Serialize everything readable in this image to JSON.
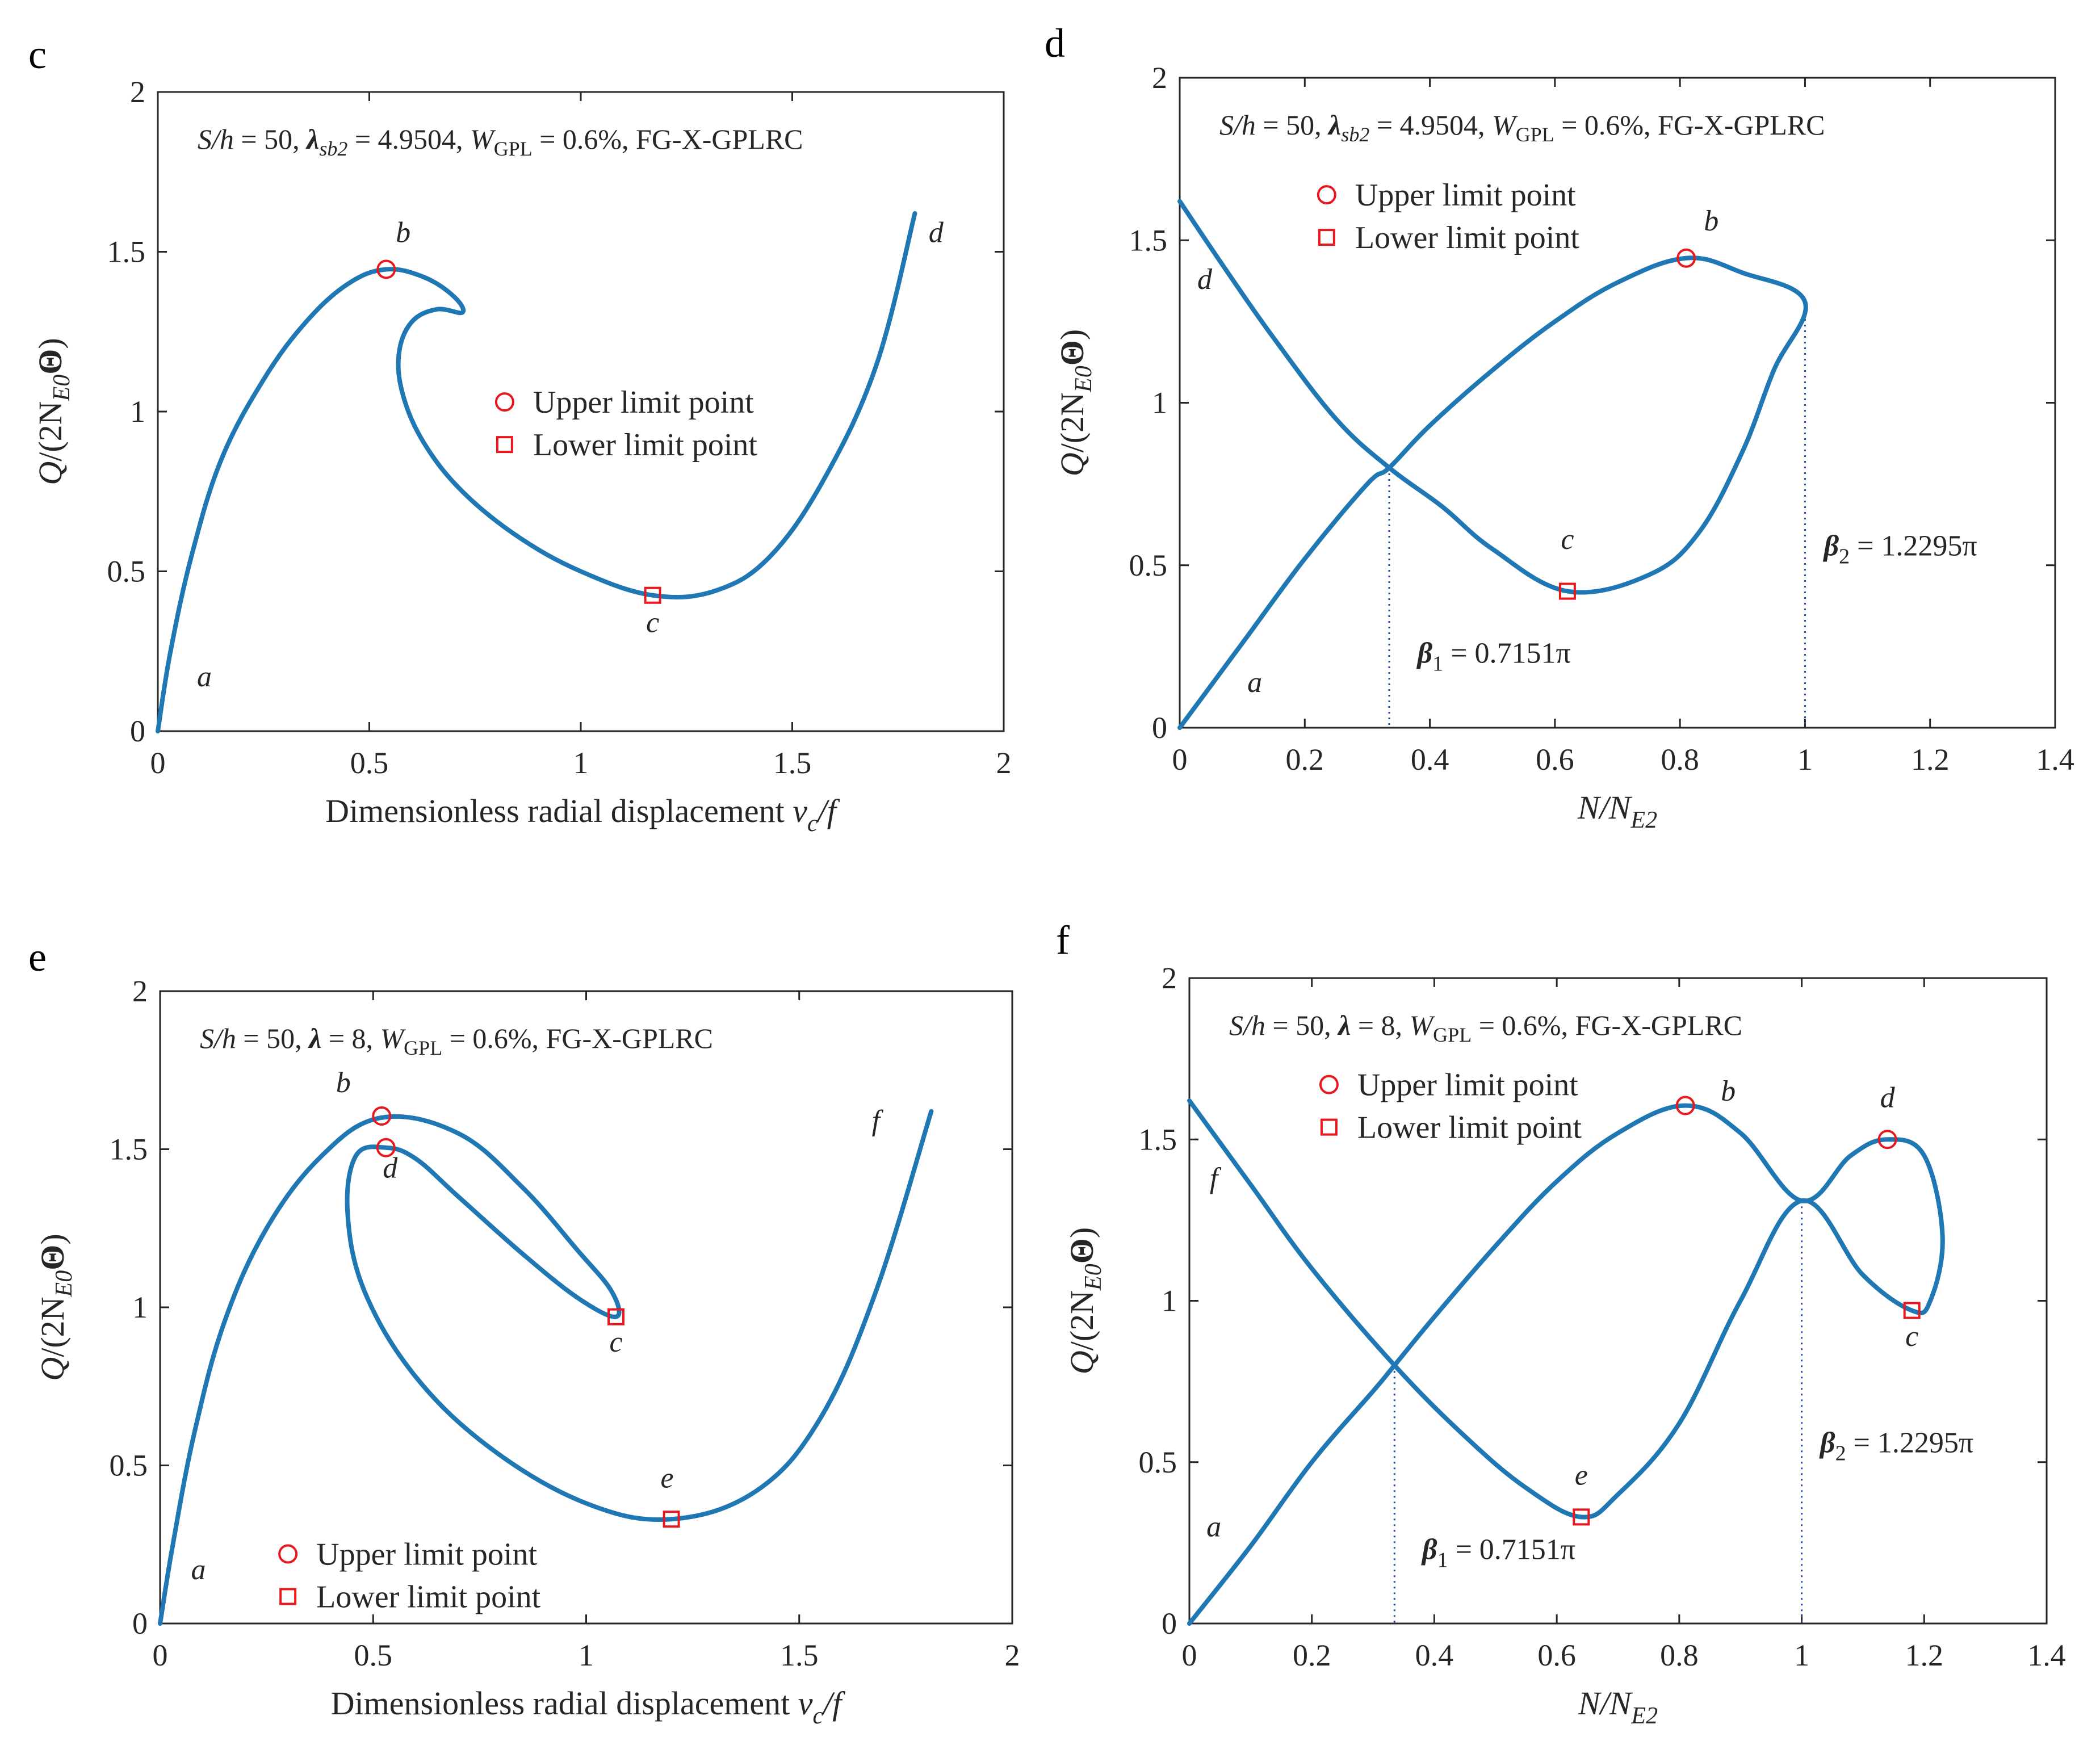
{
  "colors": {
    "curve": "#1f77b4",
    "marker": "#e8191e",
    "axes": "#262626",
    "dotted": "#1f4fa8"
  },
  "panels": [
    {
      "id": "c",
      "letter": "c",
      "annotation": {
        "pre": "S/h",
        "eq1": " = 50, ",
        "lam": "λ",
        "lamsub": "sb2",
        "eq2": " = 4.9504, ",
        "w": "W",
        "wsub": "GPL",
        "eq3": " = 0.6%, FG-X-GPLRC"
      },
      "legend": {
        "upper": "Upper limit point",
        "lower": "Lower limit point"
      },
      "ylabel": {
        "q": "Q",
        "rest": "/(2N",
        "sub": "E0",
        "theta": "Θ",
        "close": ")"
      },
      "xlabel": {
        "main": "Dimensionless radial displacement ",
        "v": "v",
        "sub": "c",
        "tail": "/f"
      },
      "xticks": [
        "0",
        "0.5",
        "1",
        "1.5",
        "2"
      ],
      "yticks": [
        "0",
        "0.5",
        "1",
        "1.5",
        "2"
      ],
      "point_labels": [
        "a",
        "b",
        "c",
        "d"
      ]
    },
    {
      "id": "d",
      "letter": "d",
      "annotation": {
        "pre": "S/h",
        "eq1": " = 50, ",
        "lam": "λ",
        "lamsub": "sb2",
        "eq2": " = 4.9504, ",
        "w": "W",
        "wsub": "GPL",
        "eq3": " = 0.6%, FG-X-GPLRC"
      },
      "legend": {
        "upper": "Upper limit point",
        "lower": "Lower limit point"
      },
      "ylabel": {
        "q": "Q",
        "rest": "/(2N",
        "sub": "E0",
        "theta": "Θ",
        "close": ")"
      },
      "xlabel": {
        "n": "N/N",
        "sub": "E2"
      },
      "xticks": [
        "0",
        "0.2",
        "0.4",
        "0.6",
        "0.8",
        "1",
        "1.2",
        "1.4"
      ],
      "yticks": [
        "0",
        "0.5",
        "1",
        "1.5",
        "2"
      ],
      "point_labels": [
        "a",
        "b",
        "c",
        "d"
      ],
      "beta1": {
        "b": "β",
        "sub": "1",
        "val": " = 0.7151π"
      },
      "beta2": {
        "b": "β",
        "sub": "2",
        "val": " = 1.2295π"
      }
    },
    {
      "id": "e",
      "letter": "e",
      "annotation": {
        "pre": "S/h",
        "eq1": " = 50, ",
        "lam": "λ",
        "eq2": " = 8, ",
        "w": "W",
        "wsub": "GPL",
        "eq3": " = 0.6%, FG-X-GPLRC"
      },
      "legend": {
        "upper": "Upper limit point",
        "lower": "Lower limit point"
      },
      "ylabel": {
        "q": "Q",
        "rest": "/(2N",
        "sub": "E0",
        "theta": "Θ",
        "close": ")"
      },
      "xlabel": {
        "main": "Dimensionless radial displacement ",
        "v": "v",
        "sub": "c",
        "tail": "/f"
      },
      "xticks": [
        "0",
        "0.5",
        "1",
        "1.5",
        "2"
      ],
      "yticks": [
        "0",
        "0.5",
        "1",
        "1.5",
        "2"
      ],
      "point_labels": [
        "a",
        "b",
        "c",
        "d",
        "e",
        "f"
      ]
    },
    {
      "id": "f",
      "letter": "f",
      "annotation": {
        "pre": "S/h",
        "eq1": " = 50, ",
        "lam": "λ",
        "eq2": " = 8, ",
        "w": "W",
        "wsub": "GPL",
        "eq3": " = 0.6%, FG-X-GPLRC"
      },
      "legend": {
        "upper": "Upper limit point",
        "lower": "Lower limit point"
      },
      "ylabel": {
        "q": "Q",
        "rest": "/(2N",
        "sub": "E0",
        "theta": "Θ",
        "close": ")"
      },
      "xlabel": {
        "n": "N/N",
        "sub": "E2"
      },
      "xticks": [
        "0",
        "0.2",
        "0.4",
        "0.6",
        "0.8",
        "1",
        "1.2",
        "1.4"
      ],
      "yticks": [
        "0",
        "0.5",
        "1",
        "1.5",
        "2"
      ],
      "point_labels": [
        "a",
        "b",
        "c",
        "d",
        "e",
        "f"
      ],
      "beta1": {
        "b": "β",
        "sub": "1",
        "val": " = 0.7151π"
      },
      "beta2": {
        "b": "β",
        "sub": "2",
        "val": " = 1.2295π"
      }
    }
  ],
  "chart_data": [
    {
      "panel": "c",
      "type": "line",
      "title": "S/h = 50, λsb2 = 4.9504, WGPL = 0.6%, FG-X-GPLRC",
      "xlabel": "Dimensionless radial displacement vc/f",
      "ylabel": "Q/(2NE0Θ)",
      "xlim": [
        0,
        2
      ],
      "ylim": [
        0,
        2
      ],
      "series": [
        {
          "name": "equilibrium path",
          "points": [
            [
              0,
              0
            ],
            [
              0.03,
              0.25
            ],
            [
              0.08,
              0.55
            ],
            [
              0.15,
              0.85
            ],
            [
              0.25,
              1.1
            ],
            [
              0.35,
              1.28
            ],
            [
              0.45,
              1.4
            ],
            [
              0.54,
              1.445
            ],
            [
              0.63,
              1.42
            ],
            [
              0.7,
              1.36
            ],
            [
              0.72,
              1.31
            ],
            [
              0.66,
              1.32
            ],
            [
              0.6,
              1.28
            ],
            [
              0.57,
              1.18
            ],
            [
              0.58,
              1.05
            ],
            [
              0.63,
              0.9
            ],
            [
              0.72,
              0.75
            ],
            [
              0.85,
              0.61
            ],
            [
              1.0,
              0.5
            ],
            [
              1.17,
              0.425
            ],
            [
              1.32,
              0.44
            ],
            [
              1.45,
              0.55
            ],
            [
              1.58,
              0.8
            ],
            [
              1.7,
              1.15
            ],
            [
              1.79,
              1.62
            ]
          ]
        }
      ],
      "markers": {
        "upper": [
          [
            0.54,
            1.445
          ]
        ],
        "lower": [
          [
            1.17,
            0.425
          ]
        ]
      },
      "point_labels": [
        {
          "label": "a",
          "x": 0.11,
          "y": 0.14
        },
        {
          "label": "b",
          "x": 0.58,
          "y": 1.53
        },
        {
          "label": "c",
          "x": 1.17,
          "y": 0.31
        },
        {
          "label": "d",
          "x": 1.84,
          "y": 1.53
        }
      ],
      "legend": [
        "Upper limit point",
        "Lower limit point"
      ]
    },
    {
      "panel": "d",
      "type": "line",
      "title": "S/h = 50, λsb2 = 4.9504, WGPL = 0.6%, FG-X-GPLRC",
      "xlabel": "N/NE2",
      "ylabel": "Q/(2NE0Θ)",
      "xlim": [
        0,
        1.4
      ],
      "ylim": [
        0,
        2
      ],
      "series": [
        {
          "name": "equilibrium path",
          "points": [
            [
              0,
              0
            ],
            [
              0.1,
              0.26
            ],
            [
              0.2,
              0.52
            ],
            [
              0.3,
              0.75
            ],
            [
              0.335,
              0.8
            ],
            [
              0.4,
              0.93
            ],
            [
              0.5,
              1.1
            ],
            [
              0.6,
              1.25
            ],
            [
              0.7,
              1.37
            ],
            [
              0.81,
              1.445
            ],
            [
              0.9,
              1.4
            ],
            [
              1.0,
              1.31
            ],
            [
              0.95,
              1.1
            ],
            [
              0.9,
              0.85
            ],
            [
              0.83,
              0.6
            ],
            [
              0.75,
              0.47
            ],
            [
              0.62,
              0.42
            ],
            [
              0.5,
              0.55
            ],
            [
              0.42,
              0.68
            ],
            [
              0.335,
              0.8
            ],
            [
              0.25,
              0.95
            ],
            [
              0.15,
              1.2
            ],
            [
              0.07,
              1.42
            ],
            [
              0,
              1.62
            ]
          ]
        }
      ],
      "markers": {
        "upper": [
          [
            0.81,
            1.445
          ]
        ],
        "lower": [
          [
            0.62,
            0.42
          ]
        ]
      },
      "point_labels": [
        {
          "label": "a",
          "x": 0.12,
          "y": 0.11
        },
        {
          "label": "b",
          "x": 0.85,
          "y": 1.53
        },
        {
          "label": "c",
          "x": 0.62,
          "y": 0.55
        },
        {
          "label": "d",
          "x": 0.04,
          "y": 1.35
        }
      ],
      "beta_lines": [
        0.335,
        1.0
      ],
      "annotations": [
        "β1 = 0.7151π",
        "β2 = 1.2295π"
      ],
      "legend": [
        "Upper limit point",
        "Lower limit point"
      ]
    },
    {
      "panel": "e",
      "type": "line",
      "title": "S/h = 50, λ = 8, WGPL = 0.6%, FG-X-GPLRC",
      "xlabel": "Dimensionless radial displacement vc/f",
      "ylabel": "Q/(2NE0Θ)",
      "xlim": [
        0,
        2
      ],
      "ylim": [
        0,
        2
      ],
      "series": [
        {
          "name": "equilibrium path",
          "points": [
            [
              0,
              0
            ],
            [
              0.03,
              0.25
            ],
            [
              0.08,
              0.6
            ],
            [
              0.15,
              0.95
            ],
            [
              0.25,
              1.25
            ],
            [
              0.38,
              1.48
            ],
            [
              0.52,
              1.6
            ],
            [
              0.7,
              1.55
            ],
            [
              0.85,
              1.38
            ],
            [
              0.98,
              1.18
            ],
            [
              1.06,
              1.05
            ],
            [
              1.07,
              0.97
            ],
            [
              0.98,
              1.03
            ],
            [
              0.85,
              1.17
            ],
            [
              0.7,
              1.35
            ],
            [
              0.6,
              1.47
            ],
            [
              0.53,
              1.505
            ],
            [
              0.46,
              1.48
            ],
            [
              0.44,
              1.3
            ],
            [
              0.48,
              1.05
            ],
            [
              0.6,
              0.78
            ],
            [
              0.78,
              0.55
            ],
            [
              1.0,
              0.38
            ],
            [
              1.2,
              0.33
            ],
            [
              1.4,
              0.42
            ],
            [
              1.55,
              0.65
            ],
            [
              1.68,
              1.05
            ],
            [
              1.81,
              1.62
            ]
          ]
        }
      ],
      "markers": {
        "upper": [
          [
            0.52,
            1.605
          ],
          [
            0.53,
            1.505
          ]
        ],
        "lower": [
          [
            1.07,
            0.97
          ],
          [
            1.2,
            0.33
          ]
        ]
      },
      "point_labels": [
        {
          "label": "a",
          "x": 0.09,
          "y": 0.14
        },
        {
          "label": "b",
          "x": 0.43,
          "y": 1.68
        },
        {
          "label": "c",
          "x": 1.07,
          "y": 0.86
        },
        {
          "label": "d",
          "x": 0.54,
          "y": 1.41
        },
        {
          "label": "e",
          "x": 1.19,
          "y": 0.43
        },
        {
          "label": "f",
          "x": 1.68,
          "y": 1.56
        }
      ],
      "legend": [
        "Upper limit point",
        "Lower limit point"
      ]
    },
    {
      "panel": "f",
      "type": "line",
      "title": "S/h = 50, λ = 8, WGPL = 0.6%, FG-X-GPLRC",
      "xlabel": "N/NE2",
      "ylabel": "Q/(2NE0Θ)",
      "xlim": [
        0,
        1.4
      ],
      "ylim": [
        0,
        2
      ],
      "series": [
        {
          "name": "equilibrium path",
          "points": [
            [
              0,
              0
            ],
            [
              0.1,
              0.24
            ],
            [
              0.2,
              0.5
            ],
            [
              0.3,
              0.72
            ],
            [
              0.335,
              0.8
            ],
            [
              0.4,
              0.95
            ],
            [
              0.5,
              1.17
            ],
            [
              0.6,
              1.37
            ],
            [
              0.7,
              1.52
            ],
            [
              0.81,
              1.605
            ],
            [
              0.9,
              1.52
            ],
            [
              1.0,
              1.31
            ],
            [
              1.08,
              1.45
            ],
            [
              1.14,
              1.5
            ],
            [
              1.2,
              1.45
            ],
            [
              1.23,
              1.2
            ],
            [
              1.21,
              1.0
            ],
            [
              1.18,
              0.97
            ],
            [
              1.1,
              1.08
            ],
            [
              1.0,
              1.31
            ],
            [
              0.9,
              1.0
            ],
            [
              0.8,
              0.62
            ],
            [
              0.7,
              0.4
            ],
            [
              0.64,
              0.33
            ],
            [
              0.55,
              0.42
            ],
            [
              0.45,
              0.58
            ],
            [
              0.335,
              0.8
            ],
            [
              0.2,
              1.1
            ],
            [
              0.1,
              1.36
            ],
            [
              0,
              1.62
            ]
          ]
        }
      ],
      "markers": {
        "upper": [
          [
            0.81,
            1.605
          ],
          [
            1.14,
            1.5
          ]
        ],
        "lower": [
          [
            1.18,
            0.97
          ],
          [
            0.64,
            0.33
          ]
        ]
      },
      "point_labels": [
        {
          "label": "a",
          "x": 0.04,
          "y": 0.27
        },
        {
          "label": "b",
          "x": 0.88,
          "y": 1.62
        },
        {
          "label": "c",
          "x": 1.18,
          "y": 0.86
        },
        {
          "label": "d",
          "x": 1.14,
          "y": 1.6
        },
        {
          "label": "e",
          "x": 0.64,
          "y": 0.43
        },
        {
          "label": "f",
          "x": 0.04,
          "y": 1.35
        }
      ],
      "beta_lines": [
        0.335,
        1.0
      ],
      "annotations": [
        "β1 = 0.7151π",
        "β2 = 1.2295π"
      ],
      "legend": [
        "Upper limit point",
        "Lower limit point"
      ]
    }
  ]
}
